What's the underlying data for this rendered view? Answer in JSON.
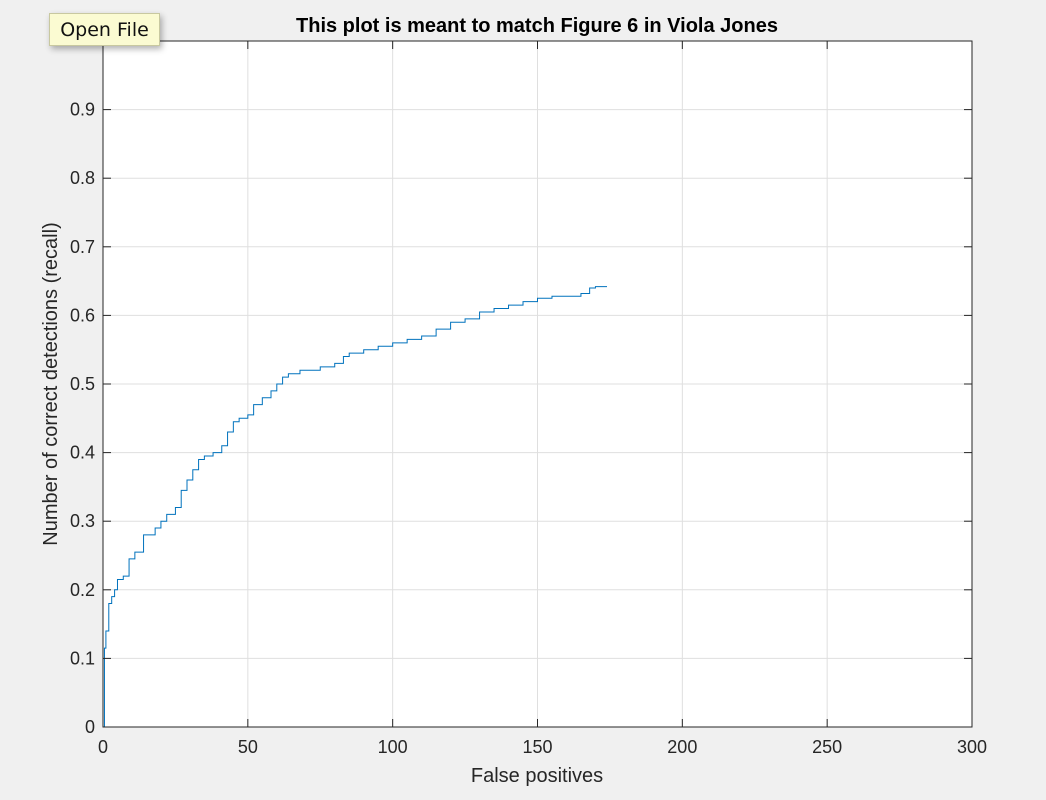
{
  "tooltip": {
    "label": "Open File"
  },
  "chart_data": {
    "type": "line",
    "title": "This plot is meant to match Figure 6 in Viola Jones",
    "xlabel": "False positives",
    "ylabel": "Number of correct detections (recall)",
    "xlim": [
      0,
      300
    ],
    "ylim": [
      0,
      1
    ],
    "xticks": [
      "0",
      "50",
      "100",
      "150",
      "200",
      "250",
      "300"
    ],
    "yticks": [
      "0",
      "0.1",
      "0.2",
      "0.3",
      "0.4",
      "0.5",
      "0.6",
      "0.7",
      "0.8",
      "0.9"
    ],
    "grid": true,
    "series": [
      {
        "color": "#0072bd",
        "x": [
          0,
          0.5,
          1,
          2,
          3,
          4,
          5,
          7,
          9,
          11,
          14,
          18,
          20,
          22,
          25,
          27,
          29,
          31,
          33,
          35,
          38,
          41,
          43,
          45,
          47,
          50,
          52,
          55,
          58,
          60,
          62,
          64,
          66,
          68,
          70,
          75,
          80,
          83,
          85,
          90,
          95,
          100,
          105,
          110,
          115,
          120,
          125,
          130,
          135,
          140,
          145,
          150,
          155,
          160,
          165,
          168,
          170,
          174
        ],
        "y": [
          0,
          0.115,
          0.14,
          0.18,
          0.19,
          0.2,
          0.215,
          0.22,
          0.245,
          0.255,
          0.28,
          0.29,
          0.3,
          0.31,
          0.32,
          0.345,
          0.36,
          0.375,
          0.39,
          0.395,
          0.4,
          0.41,
          0.43,
          0.445,
          0.45,
          0.455,
          0.47,
          0.48,
          0.49,
          0.5,
          0.51,
          0.515,
          0.515,
          0.52,
          0.52,
          0.525,
          0.53,
          0.54,
          0.545,
          0.55,
          0.555,
          0.56,
          0.565,
          0.57,
          0.58,
          0.59,
          0.595,
          0.605,
          0.61,
          0.615,
          0.62,
          0.625,
          0.628,
          0.628,
          0.632,
          0.64,
          0.642,
          0.642
        ]
      }
    ]
  }
}
